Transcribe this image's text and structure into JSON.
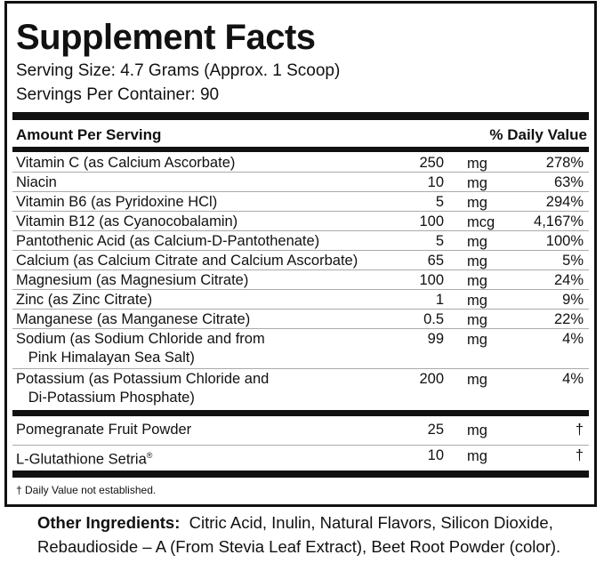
{
  "title": "Supplement Facts",
  "serving_size": "Serving Size: 4.7 Grams (Approx. 1 Scoop)",
  "servings_per_container": "Servings Per Container: 90",
  "header": {
    "amount": "Amount Per Serving",
    "dv": "% Daily Value"
  },
  "nutrients": [
    {
      "name": "Vitamin C (as Calcium Ascorbate)",
      "amount": "250",
      "unit": "mg",
      "dv": "278%"
    },
    {
      "name": "Niacin",
      "amount": "10",
      "unit": "mg",
      "dv": "63%"
    },
    {
      "name": "Vitamin B6 (as Pyridoxine HCl)",
      "amount": "5",
      "unit": "mg",
      "dv": "294%"
    },
    {
      "name": "Vitamin B12 (as Cyanocobalamin)",
      "amount": "100",
      "unit": "mcg",
      "dv": "4,167%"
    },
    {
      "name": "Pantothenic Acid (as Calcium-D-Pantothenate)",
      "amount": "5",
      "unit": "mg",
      "dv": "100%"
    },
    {
      "name": "Calcium (as Calcium Citrate and Calcium Ascorbate)",
      "amount": "65",
      "unit": "mg",
      "dv": "5%"
    },
    {
      "name": "Magnesium (as Magnesium Citrate)",
      "amount": "100",
      "unit": "mg",
      "dv": "24%"
    },
    {
      "name": "Zinc (as Zinc Citrate)",
      "amount": "1",
      "unit": "mg",
      "dv": "9%"
    },
    {
      "name": "Manganese (as Manganese Citrate)",
      "amount": "0.5",
      "unit": "mg",
      "dv": "22%"
    },
    {
      "name": "Sodium (as Sodium Chloride and from",
      "name2": "Pink Himalayan Sea Salt)",
      "amount": "99",
      "unit": "mg",
      "dv": "4%"
    },
    {
      "name": "Potassium (as Potassium Chloride and",
      "name2": "Di-Potassium Phosphate)",
      "amount": "200",
      "unit": "mg",
      "dv": "4%"
    }
  ],
  "other_nutrients": [
    {
      "name": "Pomegranate Fruit Powder",
      "amount": "25",
      "unit": "mg",
      "dv": "†"
    },
    {
      "name": "L-Glutathione Setria",
      "sup": "®",
      "amount": "10",
      "unit": "mg",
      "dv": "†"
    }
  ],
  "footnote": "† Daily Value not established.",
  "other_ingredients": {
    "label": "Other Ingredients:",
    "line1": "Citric Acid, Inulin, Natural Flavors, Silicon Dioxide,",
    "line2": "Rebaudioside – A (From Stevia Leaf Extract), Beet Root Powder (color)."
  }
}
